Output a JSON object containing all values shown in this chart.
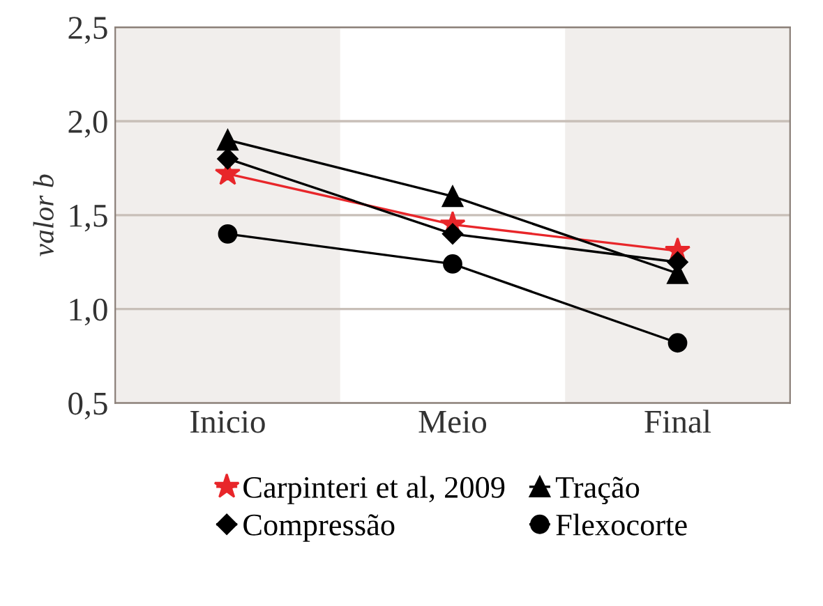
{
  "chart_data": {
    "type": "line",
    "ylabel": "valor b",
    "categories": [
      "Inicio",
      "Meio",
      "Final"
    ],
    "series": [
      {
        "name": "Carpinteri et al, 2009",
        "color": "#e8262a",
        "marker": "star",
        "values": [
          1.72,
          1.45,
          1.31
        ]
      },
      {
        "name": "Compressão",
        "color": "#000000",
        "marker": "diamond",
        "values": [
          1.8,
          1.4,
          1.25
        ]
      },
      {
        "name": "Tração",
        "color": "#000000",
        "marker": "triangle",
        "values": [
          1.9,
          1.6,
          1.19
        ]
      },
      {
        "name": "Flexocorte",
        "color": "#000000",
        "marker": "circle",
        "values": [
          1.4,
          1.24,
          0.82
        ]
      }
    ],
    "ylim": [
      0.5,
      2.5
    ],
    "yticks": [
      {
        "value": 0.5,
        "label": "0,5"
      },
      {
        "value": 1.0,
        "label": "1,0"
      },
      {
        "value": 1.5,
        "label": "1,5"
      },
      {
        "value": 2.0,
        "label": "2,0"
      },
      {
        "value": 2.5,
        "label": "2,5"
      }
    ],
    "grid": "y",
    "legend": "bottom"
  }
}
